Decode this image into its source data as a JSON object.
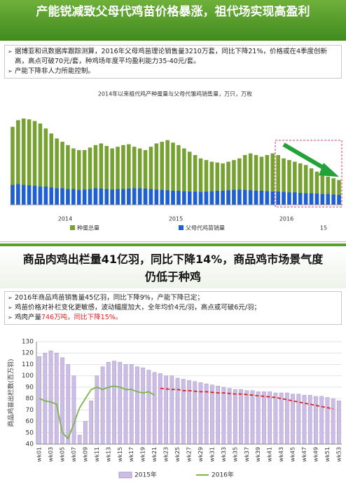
{
  "slides": [
    {
      "title": "产能锐减致父母代鸡苗价格暴涨，祖代场实现高盈利",
      "bullets": [
        "据博亚和讯数据库跟踪测算，2016年父母鸡苗理论销售量3210万套，同比下降21%，价格或在4季度创新高，高点可破70元/套，种鸡场年度平均盈利能力35-40元/套。",
        "产能下降非人力所能控制。"
      ],
      "page_number": "15"
    },
    {
      "title": "商品肉鸡出栏量41亿羽，同比下降14%，商品鸡市场景气度仍低于种鸡",
      "bullets": [
        "2016年商品鸡苗销售量45亿羽，同比下降9%，产能下降已定；",
        "鸡苗价格对补栏变化更敏感，波动幅度加大，全年均价4元/羽，高点或可破6元/羽；",
        [
          "鸡肉产量",
          "746万吨，同比下降15%。"
        ]
      ]
    }
  ],
  "chart_data": [
    {
      "type": "bar",
      "title": "2014年以来祖代鸡产种蛋量与父母代雏鸡销售量，万只，万枚",
      "year_labels": [
        "2014",
        "2015",
        "2016"
      ],
      "ylim": [
        0,
        600
      ],
      "series": [
        {
          "name": "种蛋总量",
          "color": "#77a233",
          "values": [
            470,
            510,
            520,
            515,
            505,
            490,
            460,
            430,
            400,
            380,
            360,
            340,
            330,
            330,
            345,
            360,
            370,
            355,
            340,
            350,
            360,
            365,
            350,
            340,
            330,
            350,
            370,
            380,
            390,
            375,
            360,
            340,
            320,
            300,
            280,
            270,
            260,
            255,
            250,
            260,
            270,
            280,
            300,
            310,
            300,
            290,
            300,
            310,
            300,
            280,
            270,
            260,
            250,
            240,
            220,
            200,
            190,
            170,
            160,
            150
          ]
        },
        {
          "name": "父母代鸡苗销量",
          "color": "#1f5fd6",
          "values": [
            120,
            125,
            120,
            118,
            115,
            110,
            110,
            105,
            100,
            100,
            95,
            95,
            90,
            92,
            95,
            100,
            98,
            95,
            92,
            95,
            95,
            98,
            100,
            100,
            98,
            95,
            92,
            90,
            88,
            85,
            85,
            82,
            80,
            80,
            78,
            80,
            82,
            85,
            85,
            88,
            90,
            92,
            90,
            88,
            85,
            85,
            82,
            80,
            80,
            78,
            75,
            75,
            72,
            70,
            70,
            68,
            65,
            65,
            62,
            60
          ]
        }
      ]
    },
    {
      "type": "combo",
      "y_label": "商品鸡苗出栏数(百万羽)",
      "categories": [
        "wk01",
        null,
        "wk03",
        null,
        "wk05",
        null,
        "wk07",
        null,
        "wk09",
        null,
        "wk11",
        null,
        "wk13",
        null,
        "wk15",
        null,
        "wk17",
        null,
        "wk19",
        null,
        "wk21",
        null,
        "wk23",
        null,
        "wk25",
        null,
        "wk27",
        null,
        "wk29",
        null,
        "wk31",
        null,
        "wk33",
        null,
        "wk35",
        null,
        "wk37",
        null,
        "wk39",
        null,
        "wk41",
        null,
        "wk43",
        null,
        "wk45",
        null,
        "wk47",
        null,
        "wk49",
        null,
        "wk51",
        null,
        "wk53"
      ],
      "ylim": [
        40,
        130
      ],
      "yticks": [
        40,
        50,
        60,
        70,
        80,
        90,
        100,
        110,
        120,
        130
      ],
      "series": [
        {
          "name": "2015年",
          "kind": "bar",
          "color": "#cbbde3",
          "values": [
            117,
            120,
            122,
            120,
            116,
            110,
            100,
            48,
            60,
            78,
            100,
            108,
            112,
            113,
            112,
            110,
            110,
            108,
            107,
            105,
            103,
            102,
            100,
            100,
            98,
            97,
            96,
            95,
            94,
            93,
            92,
            91,
            90,
            89,
            88,
            88,
            87,
            87,
            86,
            86,
            86,
            85,
            85,
            85,
            84,
            84,
            83,
            83,
            82,
            82,
            81,
            80,
            78
          ]
        },
        {
          "name": "2016年",
          "kind": "line",
          "color": "#7ab648",
          "values": [
            80,
            78,
            77,
            75,
            50,
            45,
            58,
            72,
            80,
            88,
            90,
            88,
            90,
            91,
            90,
            88,
            88,
            86,
            85,
            86,
            83,
            null,
            null,
            null,
            null,
            null,
            null,
            null,
            null,
            null,
            null,
            null,
            null,
            null,
            null,
            null,
            null,
            null,
            null,
            null,
            null,
            null,
            null,
            null,
            null,
            null,
            null,
            null,
            null,
            null,
            null,
            null,
            null
          ]
        },
        {
          "kind": "line",
          "color": "#e02020",
          "dashed": true,
          "values": [
            null,
            null,
            null,
            null,
            null,
            null,
            null,
            null,
            null,
            null,
            null,
            null,
            null,
            null,
            null,
            null,
            null,
            null,
            null,
            null,
            null,
            89,
            88.5,
            88,
            88,
            87,
            87,
            86.5,
            86,
            86,
            85.5,
            85,
            85,
            84.5,
            84,
            84,
            83.5,
            83,
            82.5,
            82,
            81.5,
            81,
            80,
            79,
            78,
            77,
            76,
            75,
            74,
            73,
            72,
            71,
            null
          ]
        }
      ]
    }
  ]
}
